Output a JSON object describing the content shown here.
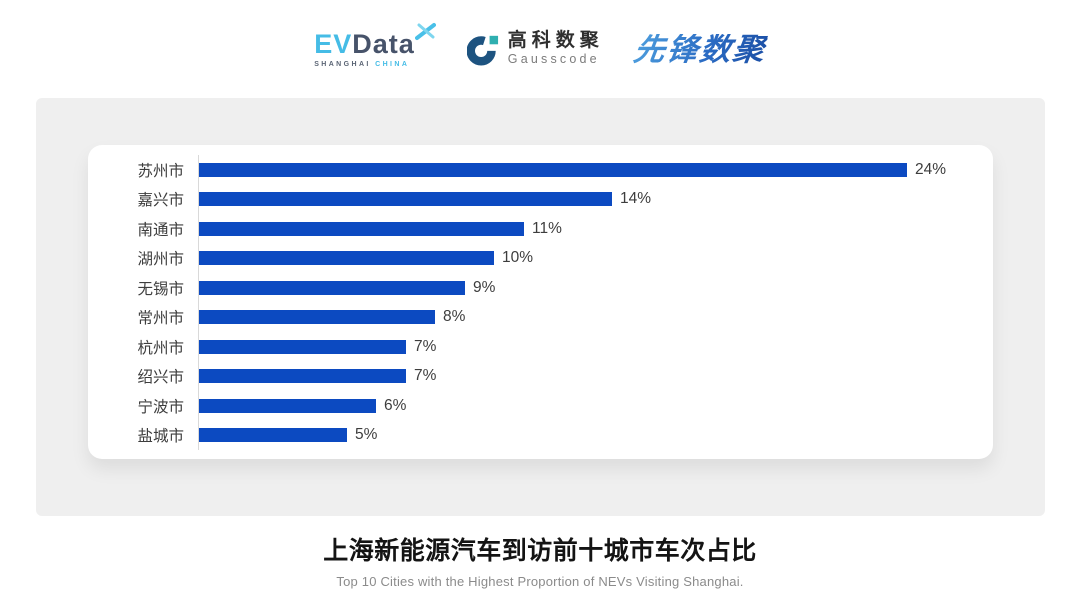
{
  "header": {
    "evdata": {
      "brand_ev": "EV",
      "brand_data": "Data",
      "tagline_left": "SHANGHAI",
      "tagline_right": "CHINA"
    },
    "gausscode": {
      "name_cn": "高科数聚",
      "name_en": "Gausscode"
    },
    "pioneer": {
      "name": "先锋数聚"
    }
  },
  "chart_data": {
    "type": "bar",
    "orientation": "horizontal",
    "title": "上海新能源汽车到访前十城市车次占比",
    "subtitle": "Top 10 Cities with the Highest Proportion of  NEVs Visiting Shanghai.",
    "categories": [
      "苏州市",
      "嘉兴市",
      "南通市",
      "湖州市",
      "无锡市",
      "常州市",
      "杭州市",
      "绍兴市",
      "宁波市",
      "盐城市"
    ],
    "values": [
      24,
      14,
      11,
      10,
      9,
      8,
      7,
      7,
      6,
      5
    ],
    "value_suffix": "%",
    "axis_max": 24,
    "bar_color": "#0C4AC1",
    "axis_line_color": "#D9D9D9",
    "grid": false,
    "legend": false
  }
}
